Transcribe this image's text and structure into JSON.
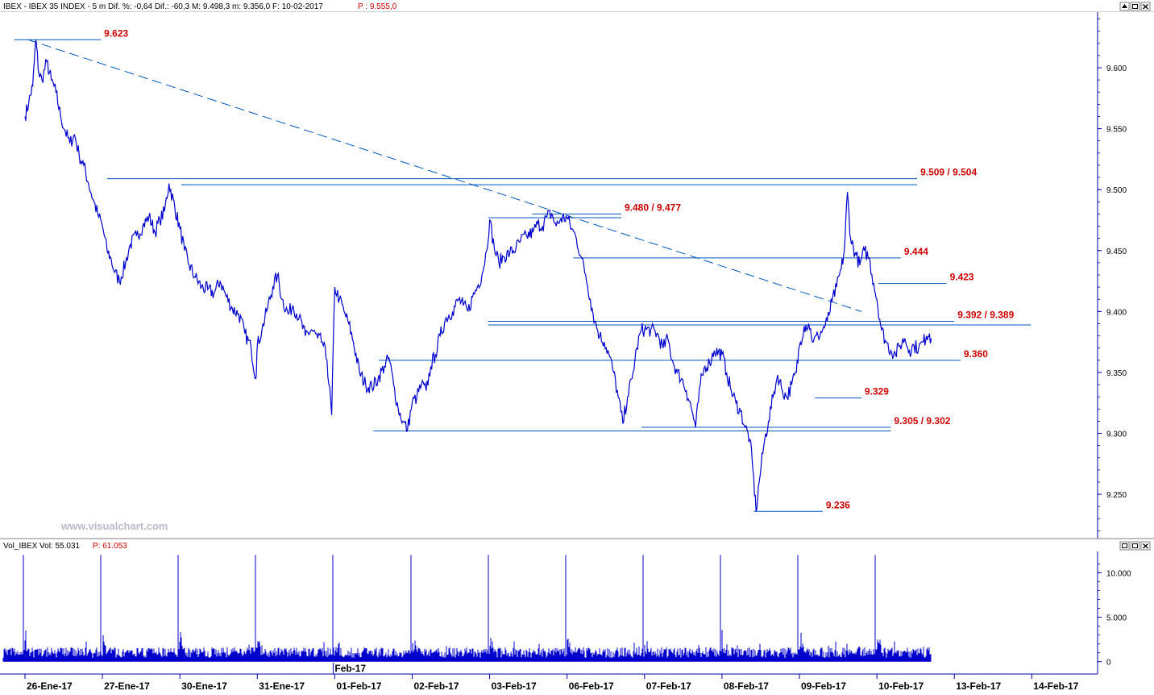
{
  "header": {
    "main_info": "IBEX - IBEX 35 INDEX -  5 m  Dif. %: -0,64  Dif.: -60,3  M: 9.498,3  m: 9.356,0  F: 10-02-2017",
    "main_price": "P : 9.555,0",
    "vol_info": "Vol_IBEX Vol: 55.031",
    "vol_price": "P: 61.053"
  },
  "watermark": "www.visualchart.com",
  "colors": {
    "price": "#0000cc",
    "level_line": "#0055bb",
    "level_label": "#cc0000",
    "axis": "#0000aa",
    "volume": "#0000cc"
  },
  "window_buttons": {
    "main": [
      "up-arrow-icon",
      "restore-icon",
      "close-icon"
    ],
    "volume": [
      "restore-icon",
      "restore-icon",
      "close-icon"
    ]
  },
  "chart_data": [
    {
      "type": "line",
      "interval": "5 m",
      "ylim": [
        9215,
        9645
      ],
      "yticks": [
        "9.600",
        "9.550",
        "9.500",
        "9.450",
        "9.400",
        "9.350",
        "9.300",
        "9.250"
      ],
      "ytick_values": [
        9600,
        9550,
        9500,
        9450,
        9400,
        9350,
        9300,
        9250
      ],
      "categories": [
        "26-Ene-17",
        "27-Ene-17",
        "30-Ene-17",
        "31-Ene-17",
        "01-Feb-17",
        "02-Feb-17",
        "03-Feb-17",
        "06-Feb-17",
        "07-Feb-17",
        "08-Feb-17",
        "09-Feb-17",
        "10-Feb-17",
        "13-Feb-17",
        "14-Feb-17"
      ],
      "month_marker": "Feb-17",
      "series": [
        {
          "values": [
            [
              0.0,
              9560
            ],
            [
              0.05,
              9572
            ],
            [
              0.1,
              9585
            ],
            [
              0.14,
              9623
            ],
            [
              0.18,
              9595
            ],
            [
              0.22,
              9590
            ],
            [
              0.28,
              9605
            ],
            [
              0.34,
              9590
            ],
            [
              0.4,
              9580
            ],
            [
              0.46,
              9560
            ],
            [
              0.52,
              9548
            ],
            [
              0.58,
              9538
            ],
            [
              0.64,
              9545
            ],
            [
              0.7,
              9528
            ],
            [
              0.76,
              9520
            ],
            [
              0.82,
              9505
            ],
            [
              0.88,
              9492
            ],
            [
              0.94,
              9480
            ],
            [
              1.0,
              9470
            ],
            [
              1.06,
              9450
            ],
            [
              1.1,
              9445
            ],
            [
              1.16,
              9432
            ],
            [
              1.22,
              9425
            ],
            [
              1.3,
              9440
            ],
            [
              1.36,
              9455
            ],
            [
              1.44,
              9462
            ],
            [
              1.52,
              9470
            ],
            [
              1.6,
              9478
            ],
            [
              1.68,
              9465
            ],
            [
              1.74,
              9475
            ],
            [
              1.8,
              9482
            ],
            [
              1.86,
              9505
            ],
            [
              2.0,
              9468
            ],
            [
              2.06,
              9450
            ],
            [
              2.12,
              9438
            ],
            [
              2.2,
              9428
            ],
            [
              2.28,
              9420
            ],
            [
              2.36,
              9418
            ],
            [
              2.44,
              9415
            ],
            [
              2.52,
              9425
            ],
            [
              2.6,
              9412
            ],
            [
              2.68,
              9402
            ],
            [
              2.76,
              9398
            ],
            [
              2.84,
              9382
            ],
            [
              2.92,
              9370
            ],
            [
              2.98,
              9345
            ],
            [
              3.0,
              9372
            ],
            [
              3.06,
              9385
            ],
            [
              3.12,
              9400
            ],
            [
              3.2,
              9420
            ],
            [
              3.26,
              9430
            ],
            [
              3.32,
              9410
            ],
            [
              3.4,
              9398
            ],
            [
              3.46,
              9405
            ],
            [
              3.54,
              9395
            ],
            [
              3.62,
              9380
            ],
            [
              3.7,
              9385
            ],
            [
              3.78,
              9378
            ],
            [
              3.84,
              9375
            ],
            [
              3.9,
              9360
            ],
            [
              3.96,
              9315
            ],
            [
              4.0,
              9420
            ],
            [
              4.06,
              9410
            ],
            [
              4.12,
              9400
            ],
            [
              4.18,
              9390
            ],
            [
              4.24,
              9375
            ],
            [
              4.32,
              9350
            ],
            [
              4.4,
              9340
            ],
            [
              4.48,
              9338
            ],
            [
              4.56,
              9345
            ],
            [
              4.64,
              9355
            ],
            [
              4.7,
              9362
            ],
            [
              4.76,
              9340
            ],
            [
              4.82,
              9320
            ],
            [
              4.88,
              9310
            ],
            [
              4.94,
              9303
            ],
            [
              5.0,
              9325
            ],
            [
              5.06,
              9330
            ],
            [
              5.12,
              9340
            ],
            [
              5.18,
              9335
            ],
            [
              5.24,
              9355
            ],
            [
              5.3,
              9365
            ],
            [
              5.36,
              9380
            ],
            [
              5.44,
              9395
            ],
            [
              5.52,
              9400
            ],
            [
              5.6,
              9410
            ],
            [
              5.66,
              9405
            ],
            [
              5.72,
              9400
            ],
            [
              5.78,
              9412
            ],
            [
              5.84,
              9420
            ],
            [
              5.9,
              9430
            ],
            [
              5.96,
              9450
            ],
            [
              6.0,
              9475
            ],
            [
              6.06,
              9452
            ],
            [
              6.12,
              9440
            ],
            [
              6.18,
              9445
            ],
            [
              6.26,
              9448
            ],
            [
              6.34,
              9452
            ],
            [
              6.4,
              9458
            ],
            [
              6.48,
              9462
            ],
            [
              6.56,
              9465
            ],
            [
              6.62,
              9472
            ],
            [
              6.68,
              9470
            ],
            [
              6.74,
              9478
            ],
            [
              6.8,
              9480
            ],
            [
              6.86,
              9470
            ],
            [
              6.92,
              9476
            ],
            [
              7.0,
              9477
            ],
            [
              7.06,
              9468
            ],
            [
              7.12,
              9460
            ],
            [
              7.18,
              9445
            ],
            [
              7.24,
              9430
            ],
            [
              7.3,
              9410
            ],
            [
              7.36,
              9392
            ],
            [
              7.42,
              9380
            ],
            [
              7.48,
              9375
            ],
            [
              7.54,
              9365
            ],
            [
              7.6,
              9350
            ],
            [
              7.66,
              9330
            ],
            [
              7.72,
              9308
            ],
            [
              7.78,
              9330
            ],
            [
              7.84,
              9345
            ],
            [
              7.9,
              9370
            ],
            [
              7.96,
              9385
            ],
            [
              8.0,
              9385
            ],
            [
              8.08,
              9385
            ],
            [
              8.16,
              9382
            ],
            [
              8.24,
              9370
            ],
            [
              8.3,
              9378
            ],
            [
              8.36,
              9360
            ],
            [
              8.42,
              9350
            ],
            [
              8.48,
              9345
            ],
            [
              8.54,
              9335
            ],
            [
              8.6,
              9322
            ],
            [
              8.66,
              9305
            ],
            [
              8.72,
              9340
            ],
            [
              8.78,
              9355
            ],
            [
              8.84,
              9358
            ],
            [
              8.9,
              9368
            ],
            [
              9.0,
              9365
            ],
            [
              9.06,
              9350
            ],
            [
              9.12,
              9335
            ],
            [
              9.18,
              9325
            ],
            [
              9.24,
              9318
            ],
            [
              9.3,
              9305
            ],
            [
              9.36,
              9295
            ],
            [
              9.4,
              9270
            ],
            [
              9.44,
              9236
            ],
            [
              9.48,
              9260
            ],
            [
              9.54,
              9290
            ],
            [
              9.6,
              9310
            ],
            [
              9.66,
              9330
            ],
            [
              9.72,
              9348
            ],
            [
              9.78,
              9335
            ],
            [
              9.84,
              9330
            ],
            [
              9.9,
              9340
            ],
            [
              9.96,
              9350
            ],
            [
              10.0,
              9372
            ],
            [
              10.06,
              9388
            ],
            [
              10.12,
              9390
            ],
            [
              10.18,
              9375
            ],
            [
              10.24,
              9380
            ],
            [
              10.3,
              9385
            ],
            [
              10.36,
              9392
            ],
            [
              10.42,
              9408
            ],
            [
              10.48,
              9420
            ],
            [
              10.54,
              9435
            ],
            [
              10.58,
              9450
            ],
            [
              10.62,
              9498
            ],
            [
              10.66,
              9460
            ],
            [
              10.72,
              9448
            ],
            [
              10.78,
              9438
            ],
            [
              10.84,
              9450
            ],
            [
              10.9,
              9444
            ],
            [
              10.96,
              9423
            ],
            [
              11.0,
              9410
            ],
            [
              11.06,
              9385
            ],
            [
              11.12,
              9375
            ],
            [
              11.18,
              9368
            ],
            [
              11.24,
              9365
            ],
            [
              11.3,
              9372
            ],
            [
              11.36,
              9378
            ],
            [
              11.42,
              9368
            ],
            [
              11.48,
              9372
            ],
            [
              11.54,
              9370
            ],
            [
              11.6,
              9375
            ],
            [
              11.64,
              9380
            ],
            [
              11.68,
              9382
            ],
            [
              11.7,
              9378
            ]
          ]
        }
      ],
      "trendline": {
        "from": [
          0.04,
          9623
        ],
        "to": [
          10.8,
          9400
        ]
      },
      "levels": [
        {
          "label": "9.623",
          "value": 9623,
          "x_start": -0.14,
          "x_end": 0.98
        },
        {
          "label": "9.509 / 9.504",
          "value": 9509,
          "x_start": 1.06,
          "x_end": 11.52
        },
        {
          "label": "",
          "value": 9504,
          "x_start": 2.02,
          "x_end": 11.52
        },
        {
          "label": "9.480 / 9.477",
          "value": 9480,
          "x_start": 6.55,
          "x_end": 7.7
        },
        {
          "label": "",
          "value": 9477,
          "x_start": 5.98,
          "x_end": 7.7
        },
        {
          "label": "9.444",
          "value": 9444,
          "x_start": 7.08,
          "x_end": 11.31
        },
        {
          "label": "9.423",
          "value": 9423,
          "x_start": 11.02,
          "x_end": 11.9
        },
        {
          "label": "9.392 / 9.389",
          "value": 9392,
          "x_start": 5.98,
          "x_end": 12.0
        },
        {
          "label": "",
          "value": 9389,
          "x_start": 5.98,
          "x_end": 12.99
        },
        {
          "label": "9.360",
          "value": 9360,
          "x_start": 4.57,
          "x_end": 12.08
        },
        {
          "label": "9.329",
          "value": 9329,
          "x_start": 10.2,
          "x_end": 10.8
        },
        {
          "label": "9.305 / 9.302",
          "value": 9305,
          "x_start": 7.96,
          "x_end": 11.18
        },
        {
          "label": "",
          "value": 9302,
          "x_start": 4.5,
          "x_end": 11.18
        },
        {
          "label": "9.236",
          "value": 9236,
          "x_start": 9.41,
          "x_end": 10.3
        }
      ]
    },
    {
      "type": "bar",
      "series_name": "Vol_IBEX",
      "ylim": [
        -1200,
        12200
      ],
      "yticks": [
        "10.000",
        "5.000",
        "0"
      ],
      "ytick_values": [
        10000,
        5000,
        0
      ],
      "spike_peaks": [
        12000,
        12000,
        12000,
        12000,
        12000,
        12000,
        12000,
        12000,
        12000,
        12000,
        12000,
        12000
      ],
      "baseline_volume": 900
    }
  ]
}
